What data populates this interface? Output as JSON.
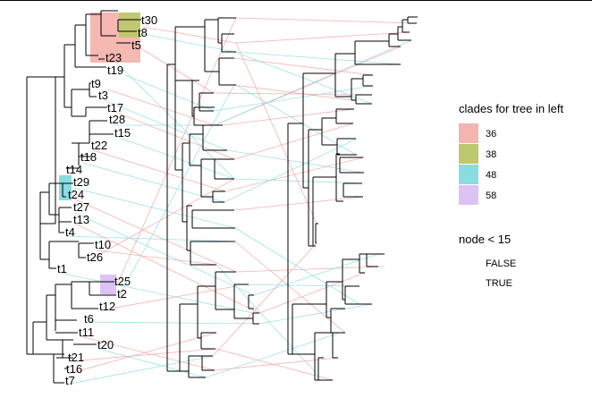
{
  "colors": {
    "clade_36": "#F4B4AF",
    "clade_38": "#BFC86C",
    "clade_48": "#8ADCE0",
    "clade_58": "#DCC2F5",
    "pink_link": "#F2A3A3",
    "cyan_link": "#8EDCE3",
    "tree": "#000000"
  },
  "tips_left": [
    "t30",
    "t8",
    "t5",
    "t23",
    "t19",
    "t9",
    "t3",
    "t17",
    "t28",
    "t15",
    "t22",
    "t18",
    "t14",
    "t29",
    "t24",
    "t27",
    "t13",
    "t4",
    "t10",
    "t26",
    "t1",
    "t25",
    "t2",
    "t12",
    "t6",
    "t11",
    "t20",
    "t21",
    "t16",
    "t7"
  ],
  "legend": {
    "clades_title": "clades for tree in left",
    "clades": [
      {
        "label": "36",
        "color": "#F4B4AF"
      },
      {
        "label": "38",
        "color": "#BFC86C"
      },
      {
        "label": "48",
        "color": "#8ADCE0"
      },
      {
        "label": "58",
        "color": "#DCC2F5"
      }
    ],
    "node_title": "node < 15",
    "node_values": [
      "FALSE",
      "TRUE"
    ]
  }
}
